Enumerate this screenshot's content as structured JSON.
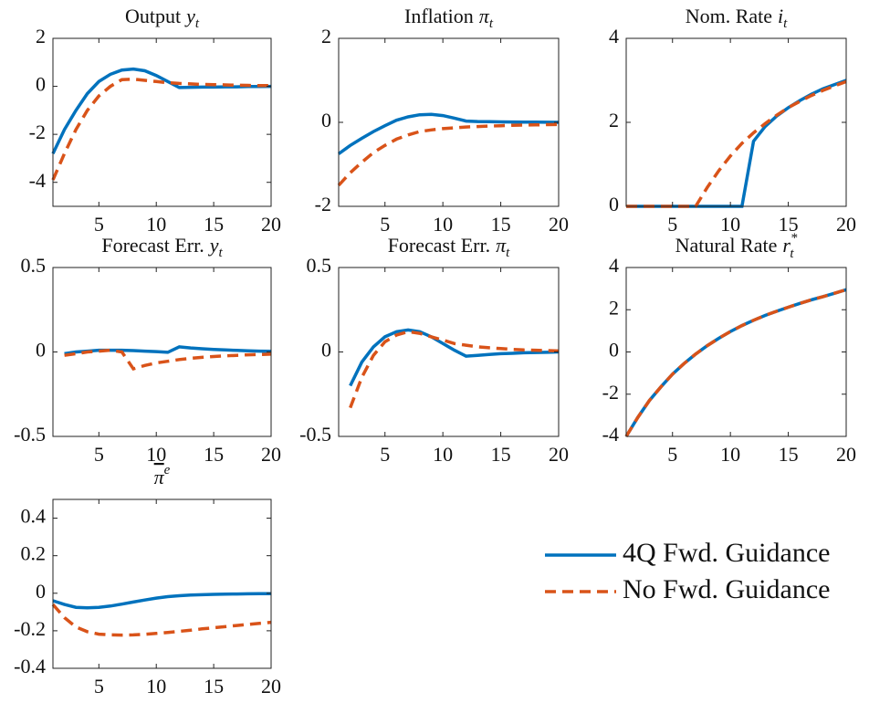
{
  "chart_data": [
    {
      "type": "line",
      "title": "Output",
      "title_var": "y",
      "title_sub": "t",
      "x": [
        1,
        2,
        3,
        4,
        5,
        6,
        7,
        8,
        9,
        10,
        11,
        12,
        13,
        14,
        15,
        16,
        17,
        18,
        19,
        20
      ],
      "xlim": [
        1,
        20
      ],
      "xticks": [
        5,
        10,
        15,
        20
      ],
      "ylim": [
        -5,
        2
      ],
      "yticks": [
        -4,
        -2,
        0,
        2
      ],
      "series": [
        {
          "color": "#0072BD",
          "line_style": "solid",
          "values": [
            -2.8,
            -1.8,
            -1.0,
            -0.3,
            0.2,
            0.5,
            0.68,
            0.72,
            0.65,
            0.45,
            0.2,
            -0.05,
            -0.04,
            -0.03,
            -0.03,
            -0.02,
            -0.02,
            -0.01,
            -0.01,
            0.0
          ]
        },
        {
          "color": "#D95319",
          "line_style": "dashed",
          "values": [
            -3.9,
            -2.8,
            -1.8,
            -1.0,
            -0.4,
            0.0,
            0.28,
            0.3,
            0.25,
            0.2,
            0.15,
            0.12,
            0.1,
            0.08,
            0.07,
            0.06,
            0.05,
            0.04,
            0.03,
            0.03
          ]
        }
      ]
    },
    {
      "type": "line",
      "title": "Inflation",
      "title_var": "π",
      "title_sub": "t",
      "x": [
        1,
        2,
        3,
        4,
        5,
        6,
        7,
        8,
        9,
        10,
        11,
        12,
        13,
        14,
        15,
        16,
        17,
        18,
        19,
        20
      ],
      "xlim": [
        1,
        20
      ],
      "xticks": [
        5,
        10,
        15,
        20
      ],
      "ylim": [
        -2,
        2
      ],
      "yticks": [
        -2,
        0,
        2
      ],
      "series": [
        {
          "color": "#0072BD",
          "line_style": "solid",
          "values": [
            -0.75,
            -0.55,
            -0.38,
            -0.22,
            -0.08,
            0.05,
            0.13,
            0.18,
            0.19,
            0.16,
            0.1,
            0.03,
            0.02,
            0.015,
            0.01,
            0.008,
            0.006,
            0.004,
            0.002,
            0.0
          ]
        },
        {
          "color": "#D95319",
          "line_style": "dashed",
          "values": [
            -1.5,
            -1.2,
            -0.95,
            -0.72,
            -0.55,
            -0.4,
            -0.3,
            -0.22,
            -0.18,
            -0.15,
            -0.13,
            -0.11,
            -0.1,
            -0.09,
            -0.08,
            -0.07,
            -0.065,
            -0.06,
            -0.055,
            -0.05
          ]
        }
      ]
    },
    {
      "type": "line",
      "title": "Nom. Rate",
      "title_var": "i",
      "title_sub": "t",
      "x": [
        1,
        2,
        3,
        4,
        5,
        6,
        7,
        8,
        9,
        10,
        11,
        12,
        13,
        14,
        15,
        16,
        17,
        18,
        19,
        20
      ],
      "xlim": [
        1,
        20
      ],
      "xticks": [
        5,
        10,
        15,
        20
      ],
      "ylim": [
        0,
        4
      ],
      "yticks": [
        0,
        2,
        4
      ],
      "series": [
        {
          "color": "#0072BD",
          "line_style": "solid",
          "values": [
            0,
            0,
            0,
            0,
            0,
            0,
            0,
            0,
            0,
            0,
            0,
            1.55,
            1.9,
            2.15,
            2.35,
            2.52,
            2.67,
            2.8,
            2.9,
            3.0
          ]
        },
        {
          "color": "#D95319",
          "line_style": "dashed",
          "values": [
            0,
            0,
            0,
            0,
            0,
            0,
            0,
            0.45,
            0.85,
            1.2,
            1.5,
            1.75,
            1.97,
            2.17,
            2.35,
            2.5,
            2.64,
            2.76,
            2.87,
            2.97
          ]
        }
      ]
    },
    {
      "type": "line",
      "title": "Forecast Err.",
      "title_var": "y",
      "title_sub": "t",
      "x": [
        2,
        3,
        4,
        5,
        6,
        7,
        8,
        9,
        10,
        11,
        12,
        13,
        14,
        15,
        16,
        17,
        18,
        19,
        20
      ],
      "xlim": [
        1,
        20
      ],
      "xticks": [
        5,
        10,
        15,
        20
      ],
      "ylim": [
        -0.5,
        0.5
      ],
      "yticks": [
        -0.5,
        0,
        0.5
      ],
      "series": [
        {
          "color": "#0072BD",
          "line_style": "solid",
          "values": [
            -0.01,
            0.0,
            0.005,
            0.01,
            0.01,
            0.01,
            0.008,
            0.005,
            0.002,
            -0.002,
            0.03,
            0.024,
            0.019,
            0.015,
            0.012,
            0.009,
            0.007,
            0.005,
            0.004
          ]
        },
        {
          "color": "#D95319",
          "line_style": "dashed",
          "values": [
            -0.02,
            -0.01,
            0.0,
            0.005,
            0.01,
            0.0,
            -0.1,
            -0.08,
            -0.065,
            -0.055,
            -0.045,
            -0.038,
            -0.032,
            -0.027,
            -0.023,
            -0.02,
            -0.017,
            -0.015,
            -0.013
          ]
        }
      ]
    },
    {
      "type": "line",
      "title": "Forecast Err.",
      "title_var": "π",
      "title_sub": "t",
      "x": [
        2,
        3,
        4,
        5,
        6,
        7,
        8,
        9,
        10,
        11,
        12,
        13,
        14,
        15,
        16,
        17,
        18,
        19,
        20
      ],
      "xlim": [
        1,
        20
      ],
      "xticks": [
        5,
        10,
        15,
        20
      ],
      "ylim": [
        -0.5,
        0.5
      ],
      "yticks": [
        -0.5,
        0,
        0.5
      ],
      "series": [
        {
          "color": "#0072BD",
          "line_style": "solid",
          "values": [
            -0.2,
            -0.06,
            0.03,
            0.09,
            0.12,
            0.13,
            0.12,
            0.09,
            0.05,
            0.01,
            -0.025,
            -0.02,
            -0.015,
            -0.01,
            -0.008,
            -0.005,
            -0.003,
            -0.002,
            0.0
          ]
        },
        {
          "color": "#D95319",
          "line_style": "dashed",
          "values": [
            -0.33,
            -0.15,
            -0.02,
            0.06,
            0.1,
            0.12,
            0.11,
            0.09,
            0.07,
            0.05,
            0.04,
            0.03,
            0.025,
            0.02,
            0.015,
            0.012,
            0.01,
            0.008,
            0.006
          ]
        }
      ]
    },
    {
      "type": "line",
      "title": "Natural Rate",
      "title_var": "r",
      "title_sup": "*",
      "title_sub": "t",
      "x": [
        1,
        2,
        3,
        4,
        5,
        6,
        7,
        8,
        9,
        10,
        11,
        12,
        13,
        14,
        15,
        16,
        17,
        18,
        19,
        20
      ],
      "xlim": [
        1,
        20
      ],
      "xticks": [
        5,
        10,
        15,
        20
      ],
      "ylim": [
        -4,
        4
      ],
      "yticks": [
        -4,
        -2,
        0,
        2,
        4
      ],
      "series": [
        {
          "color": "#0072BD",
          "line_style": "solid",
          "values": [
            -4,
            -3.1,
            -2.3,
            -1.65,
            -1.05,
            -0.55,
            -0.1,
            0.3,
            0.65,
            0.97,
            1.25,
            1.5,
            1.73,
            1.93,
            2.12,
            2.3,
            2.47,
            2.62,
            2.78,
            2.95
          ]
        },
        {
          "color": "#D95319",
          "line_style": "dashed",
          "values": [
            -4,
            -3.1,
            -2.3,
            -1.65,
            -1.05,
            -0.55,
            -0.1,
            0.3,
            0.65,
            0.97,
            1.25,
            1.5,
            1.73,
            1.93,
            2.12,
            2.3,
            2.47,
            2.62,
            2.78,
            2.95
          ]
        }
      ]
    },
    {
      "type": "line",
      "title_var": "π",
      "title_sup": "e",
      "x": [
        1,
        2,
        3,
        4,
        5,
        6,
        7,
        8,
        9,
        10,
        11,
        12,
        13,
        14,
        15,
        16,
        17,
        18,
        19,
        20
      ],
      "xlim": [
        1,
        20
      ],
      "xticks": [
        5,
        10,
        15,
        20
      ],
      "ylim": [
        -0.4,
        0.5
      ],
      "yticks": [
        -0.4,
        -0.2,
        0,
        0.2,
        0.4
      ],
      "series": [
        {
          "name": "4Q Fwd. Guidance",
          "color": "#0072BD",
          "line_style": "solid",
          "values": [
            -0.04,
            -0.06,
            -0.075,
            -0.078,
            -0.075,
            -0.068,
            -0.058,
            -0.047,
            -0.036,
            -0.026,
            -0.018,
            -0.013,
            -0.01,
            -0.008,
            -0.006,
            -0.005,
            -0.004,
            -0.003,
            -0.002,
            -0.002
          ]
        },
        {
          "name": "No Fwd. Guidance",
          "color": "#D95319",
          "line_style": "dashed",
          "values": [
            -0.06,
            -0.13,
            -0.18,
            -0.205,
            -0.218,
            -0.222,
            -0.223,
            -0.222,
            -0.219,
            -0.214,
            -0.209,
            -0.203,
            -0.197,
            -0.19,
            -0.184,
            -0.178,
            -0.172,
            -0.166,
            -0.16,
            -0.155
          ]
        }
      ]
    }
  ]
}
